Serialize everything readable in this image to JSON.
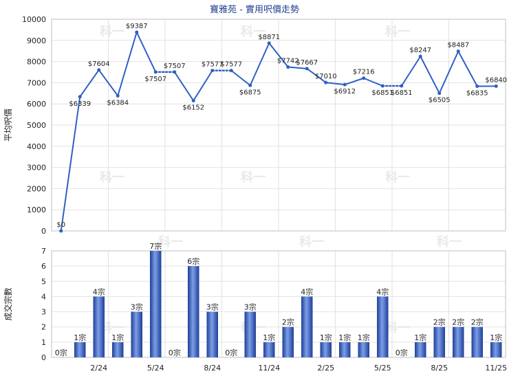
{
  "chart_data": [
    {
      "type": "line",
      "title": "寶雅苑 - 實用呎價走勢",
      "ylabel": "平均呎價",
      "ylim": [
        0,
        10000
      ],
      "yticks": [
        0,
        1000,
        2000,
        3000,
        4000,
        5000,
        6000,
        7000,
        8000,
        9000,
        10000
      ],
      "grid": true,
      "color": "#2f5fc4",
      "values": [
        0,
        6339,
        7604,
        6384,
        9387,
        7507,
        7507,
        6152,
        7577,
        7577,
        6875,
        8871,
        7742,
        7667,
        7010,
        6912,
        7216,
        6851,
        6851,
        8247,
        6505,
        8487,
        6835,
        6840
      ],
      "labels": [
        "$0",
        "$6339",
        "$7604",
        "$6384",
        "$9387",
        "$7507",
        "$7507",
        "$6152",
        "$7577",
        "$7577",
        "$6875",
        "$8871",
        "$7742",
        "$7667",
        "$7010",
        "$6912",
        "$7216",
        "$6851",
        "$6851",
        "$8247",
        "$6505",
        "$8487",
        "$6835",
        "$6840"
      ],
      "dotted_segments": [
        [
          5,
          6
        ],
        [
          8,
          9
        ],
        [
          17,
          18
        ]
      ]
    },
    {
      "type": "bar",
      "ylabel": "成交宗數",
      "ylim": [
        0,
        7
      ],
      "yticks": [
        0,
        1,
        2,
        3,
        4,
        5,
        6,
        7
      ],
      "grid": true,
      "color": "#3a66c8",
      "values": [
        0,
        1,
        4,
        1,
        3,
        7,
        0,
        6,
        3,
        0,
        3,
        1,
        2,
        4,
        1,
        1,
        1,
        4,
        0,
        1,
        2,
        2,
        2,
        1
      ],
      "labels": [
        "0宗",
        "1宗",
        "4宗",
        "1宗",
        "3宗",
        "7宗",
        "0宗",
        "6宗",
        "3宗",
        "0宗",
        "3宗",
        "1宗",
        "2宗",
        "4宗",
        "1宗",
        "1宗",
        "1宗",
        "4宗",
        "0宗",
        "1宗",
        "2宗",
        "2宗",
        "2宗",
        "1宗"
      ],
      "x_tick_labels": [
        {
          "index": 2,
          "label": "2/24"
        },
        {
          "index": 5,
          "label": "5/24"
        },
        {
          "index": 8,
          "label": "8/24"
        },
        {
          "index": 11,
          "label": "11/24"
        },
        {
          "index": 14,
          "label": "2/25"
        },
        {
          "index": 17,
          "label": "5/25"
        },
        {
          "index": 20,
          "label": "8/25"
        },
        {
          "index": 23,
          "label": "11/25"
        }
      ]
    }
  ],
  "watermark": "科一"
}
